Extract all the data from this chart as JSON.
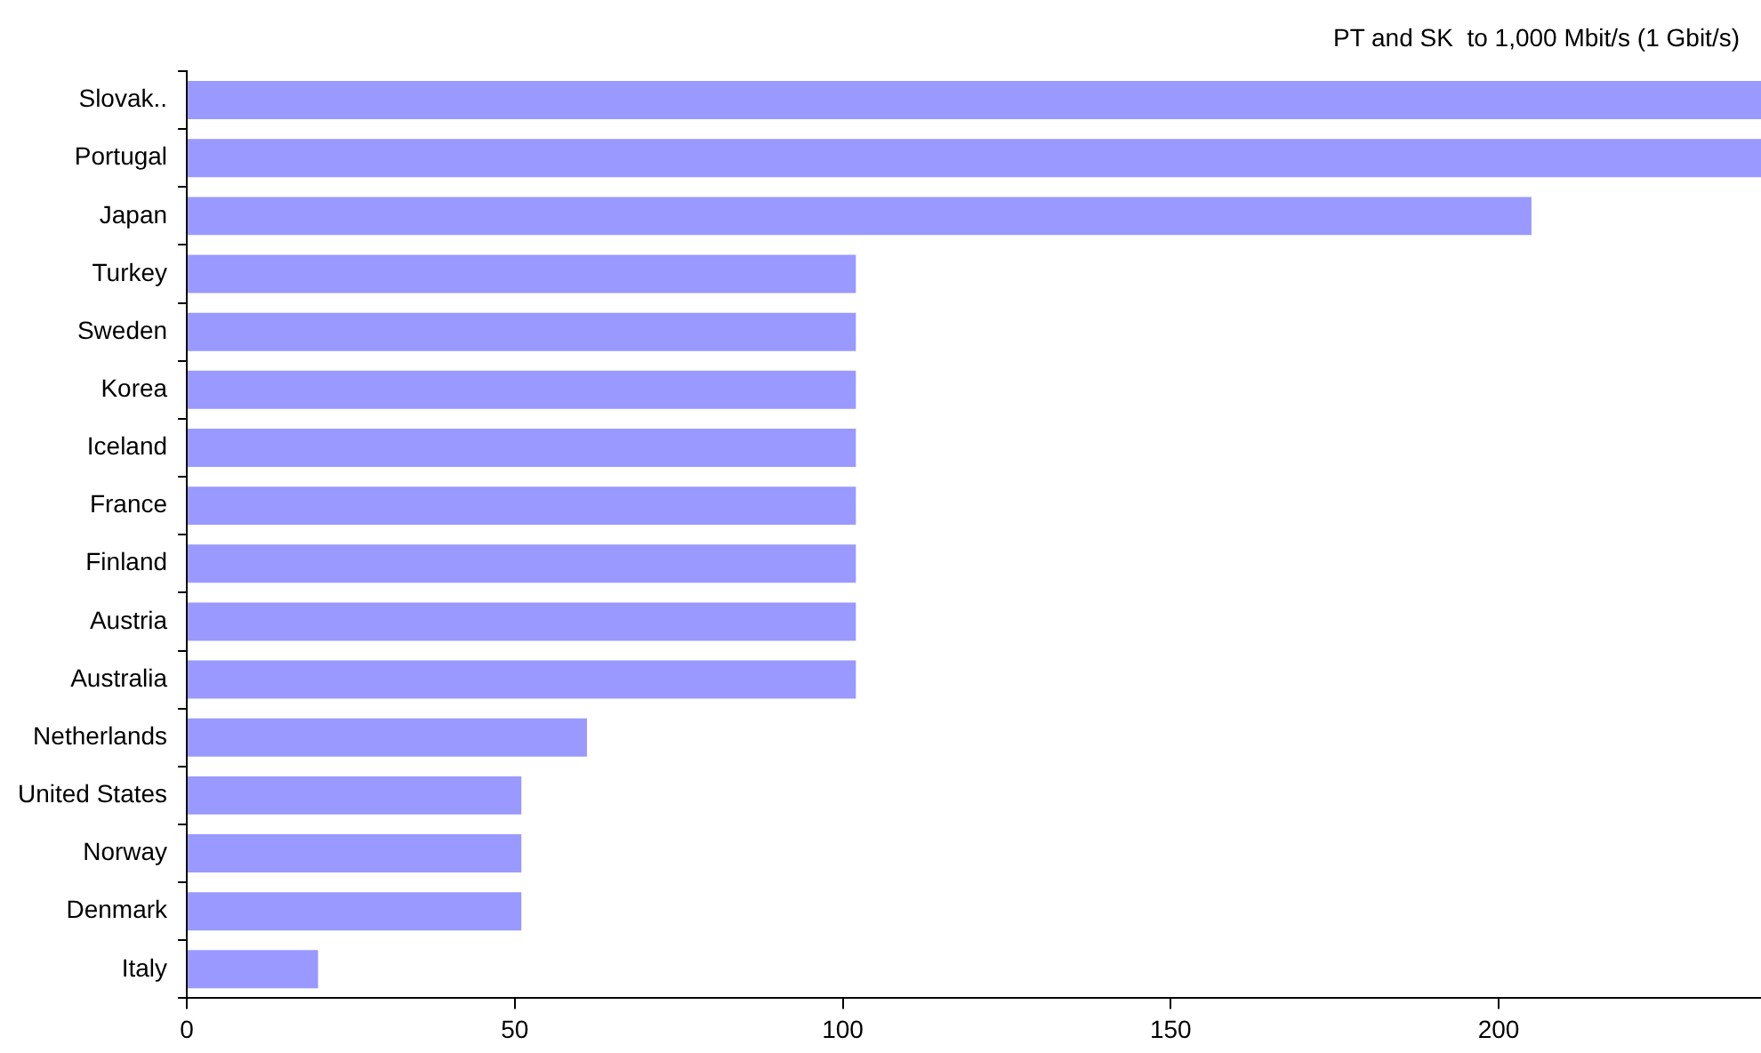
{
  "chart_data": {
    "type": "bar",
    "orientation": "horizontal",
    "categories": [
      "Slovak..",
      "Portugal",
      "Japan",
      "Turkey",
      "Sweden",
      "Korea",
      "Iceland",
      "France",
      "Finland",
      "Austria",
      "Australia",
      "Netherlands",
      "United States",
      "Norway",
      "Denmark",
      "Italy"
    ],
    "values": [
      240,
      240,
      205,
      102,
      102,
      102,
      102,
      102,
      102,
      102,
      102,
      61,
      51,
      51,
      51,
      20
    ],
    "color": "#9999ff",
    "xlim": [
      0,
      240
    ],
    "xticks": [
      0,
      50,
      100,
      150,
      200
    ],
    "annotations": [
      "PT and SK  to 1,000 Mbit/s (1 Gbit/s)"
    ],
    "grid": false,
    "legend": false
  }
}
